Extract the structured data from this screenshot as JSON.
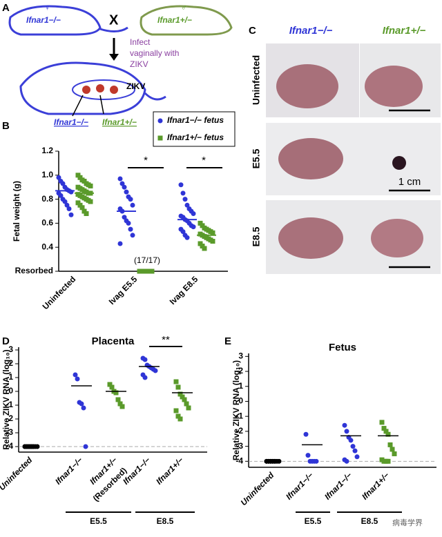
{
  "panel_labels": [
    "A",
    "B",
    "C",
    "D",
    "E"
  ],
  "panel_a": {
    "female_genotype": "Ifnar1−/−",
    "female_symbol": "♀",
    "cross": "X",
    "male_genotype": "Ifnar1+/−",
    "male_symbol": "♂",
    "infection": [
      "Infect",
      "vaginally with",
      "ZIKV"
    ],
    "virus": "ZIKV",
    "fetus_genotypes": [
      "Ifnar1−/−",
      "Ifnar1+/−"
    ]
  },
  "panel_c": {
    "columns": [
      "Ifnar1−/−",
      "Ifnar1+/−"
    ],
    "rows": [
      "Uninfected",
      "E5.5",
      "E8.5"
    ],
    "scale_bar": "1 cm"
  },
  "chart_data": [
    {
      "type": "dot",
      "y_label": "Fetal weight (g)",
      "categories": [
        "Uninfected",
        "Ivag E5.5",
        "Ivag E8.5"
      ],
      "series": [
        {
          "name": "Ifnar1−/− fetus",
          "color": "#2f35d6",
          "marker": "circle",
          "values": [
            [
              0.98,
              0.95,
              0.93,
              0.9,
              0.88,
              0.87,
              0.86,
              0.85,
              0.83,
              0.8,
              0.78,
              0.75,
              0.72,
              0.67
            ],
            [
              0.97,
              0.93,
              0.9,
              0.86,
              0.82,
              0.8,
              0.75,
              0.72,
              0.7,
              0.65,
              0.62,
              0.6,
              0.55,
              0.5,
              0.43
            ],
            [
              0.92,
              0.85,
              0.8,
              0.75,
              0.72,
              0.7,
              0.68,
              0.66,
              0.65,
              0.63,
              0.62,
              0.6,
              0.58,
              0.57,
              0.55,
              0.53,
              0.5,
              0.48
            ]
          ],
          "means": [
            0.87,
            0.7,
            0.63
          ]
        },
        {
          "name": "Ifnar1+/− fetus",
          "color": "#5a9a2a",
          "marker": "square",
          "values": [
            [
              1.0,
              0.98,
              0.96,
              0.95,
              0.93,
              0.92,
              0.91,
              0.9,
              0.89,
              0.88,
              0.87,
              0.86,
              0.85,
              0.85,
              0.84,
              0.83,
              0.82,
              0.81,
              0.8,
              0.79,
              0.78,
              0.77,
              0.75,
              0.73,
              0.7,
              0.68
            ],
            [
              0.2,
              0.2,
              0.2,
              0.2,
              0.2,
              0.2,
              0.2,
              0.2,
              0.2,
              0.2,
              0.2,
              0.2,
              0.2,
              0.2,
              0.2,
              0.2,
              0.2
            ],
            [
              0.6,
              0.58,
              0.56,
              0.55,
              0.54,
              0.53,
              0.52,
              0.51,
              0.5,
              0.49,
              0.48,
              0.47,
              0.46,
              0.45,
              0.43,
              0.41,
              0.39
            ]
          ],
          "means": [
            0.85,
            null,
            0.5
          ]
        }
      ],
      "ylim": [
        0.2,
        1.2
      ],
      "yticks": [
        {
          "value": 0.2,
          "label": "Resorbed"
        },
        0.4,
        0.6,
        0.8,
        {
          "value": 1,
          "label": "1.0"
        },
        1.2
      ],
      "annotations": [
        "(17/17)",
        "*",
        "*"
      ],
      "legend": "upper right"
    },
    {
      "type": "dot",
      "title": "Placenta",
      "y_label": "Relative ZIKV RNA (log₁₀)",
      "categories": [
        "Uninfected",
        "Ifnar1−/−",
        "Ifnar1+/−",
        "Ifnar1−/−",
        "Ifnar1+/−"
      ],
      "colors": [
        "#000000",
        "#2f35d6",
        "#5a9a2a",
        "#2f35d6",
        "#5a9a2a"
      ],
      "markers": [
        "circle",
        "circle",
        "square",
        "circle",
        "square"
      ],
      "values": [
        [
          -4,
          -4,
          -4,
          -4,
          -4,
          -4,
          -4,
          -4,
          -4,
          -4,
          -4,
          -4
        ],
        [
          1.2,
          0.9,
          -0.8,
          -0.9,
          -1.2,
          -4
        ],
        [
          0.5,
          0.3,
          0,
          -0.1,
          -0.6,
          -0.9,
          -1.1
        ],
        [
          2.4,
          2.3,
          1.9,
          1.8,
          1.7,
          1.6,
          1.5,
          1.2,
          1.0
        ],
        [
          0.7,
          0.3,
          -0.2,
          -0.4,
          -0.6,
          -0.9,
          -1.2,
          -1.4,
          -1.8,
          -2.0
        ]
      ],
      "means": [
        null,
        0.4,
        0,
        1.8,
        -0.1
      ],
      "limit": -4,
      "ylim": [
        -4.4,
        3.2
      ],
      "yticks": [
        -4,
        -3,
        -2,
        -1,
        0,
        1,
        2,
        3
      ],
      "groups": [
        "E5.5",
        "E8.5"
      ],
      "annotations": [
        "(Resorbed)",
        "**"
      ]
    },
    {
      "type": "dot",
      "title": "Fetus",
      "y_label": "Relative ZIKV RNA (log₁₀)",
      "categories": [
        "Uninfected",
        "Ifnar1−/−",
        "Ifnar1−/−",
        "Ifnar1+/−"
      ],
      "colors": [
        "#000000",
        "#2f35d6",
        "#2f35d6",
        "#5a9a2a"
      ],
      "markers": [
        "circle",
        "circle",
        "circle",
        "square"
      ],
      "values": [
        [
          -4,
          -4,
          -4,
          -4,
          -4,
          -4,
          -4,
          -4,
          -4,
          -4,
          -4,
          -4
        ],
        [
          -2.2,
          -3.6,
          -4,
          -4,
          -4,
          -4
        ],
        [
          -1.6,
          -2.0,
          -2.4,
          -2.6,
          -3.0,
          -3.3,
          -3.7,
          -3.9,
          -4
        ],
        [
          -1.4,
          -1.8,
          -2.0,
          -2.2,
          -2.9,
          -3.2,
          -3.5,
          -3.9,
          -4,
          -4,
          -4
        ]
      ],
      "means": [
        null,
        -2.9,
        -2.3,
        -2.3
      ],
      "limit": -4,
      "ylim": [
        -4.4,
        3.2
      ],
      "yticks": [
        -4,
        -3,
        -2,
        -1,
        0,
        1,
        2,
        3
      ],
      "groups": [
        "E5.5",
        "E8.5"
      ]
    }
  ],
  "watermark": "病毒学界"
}
